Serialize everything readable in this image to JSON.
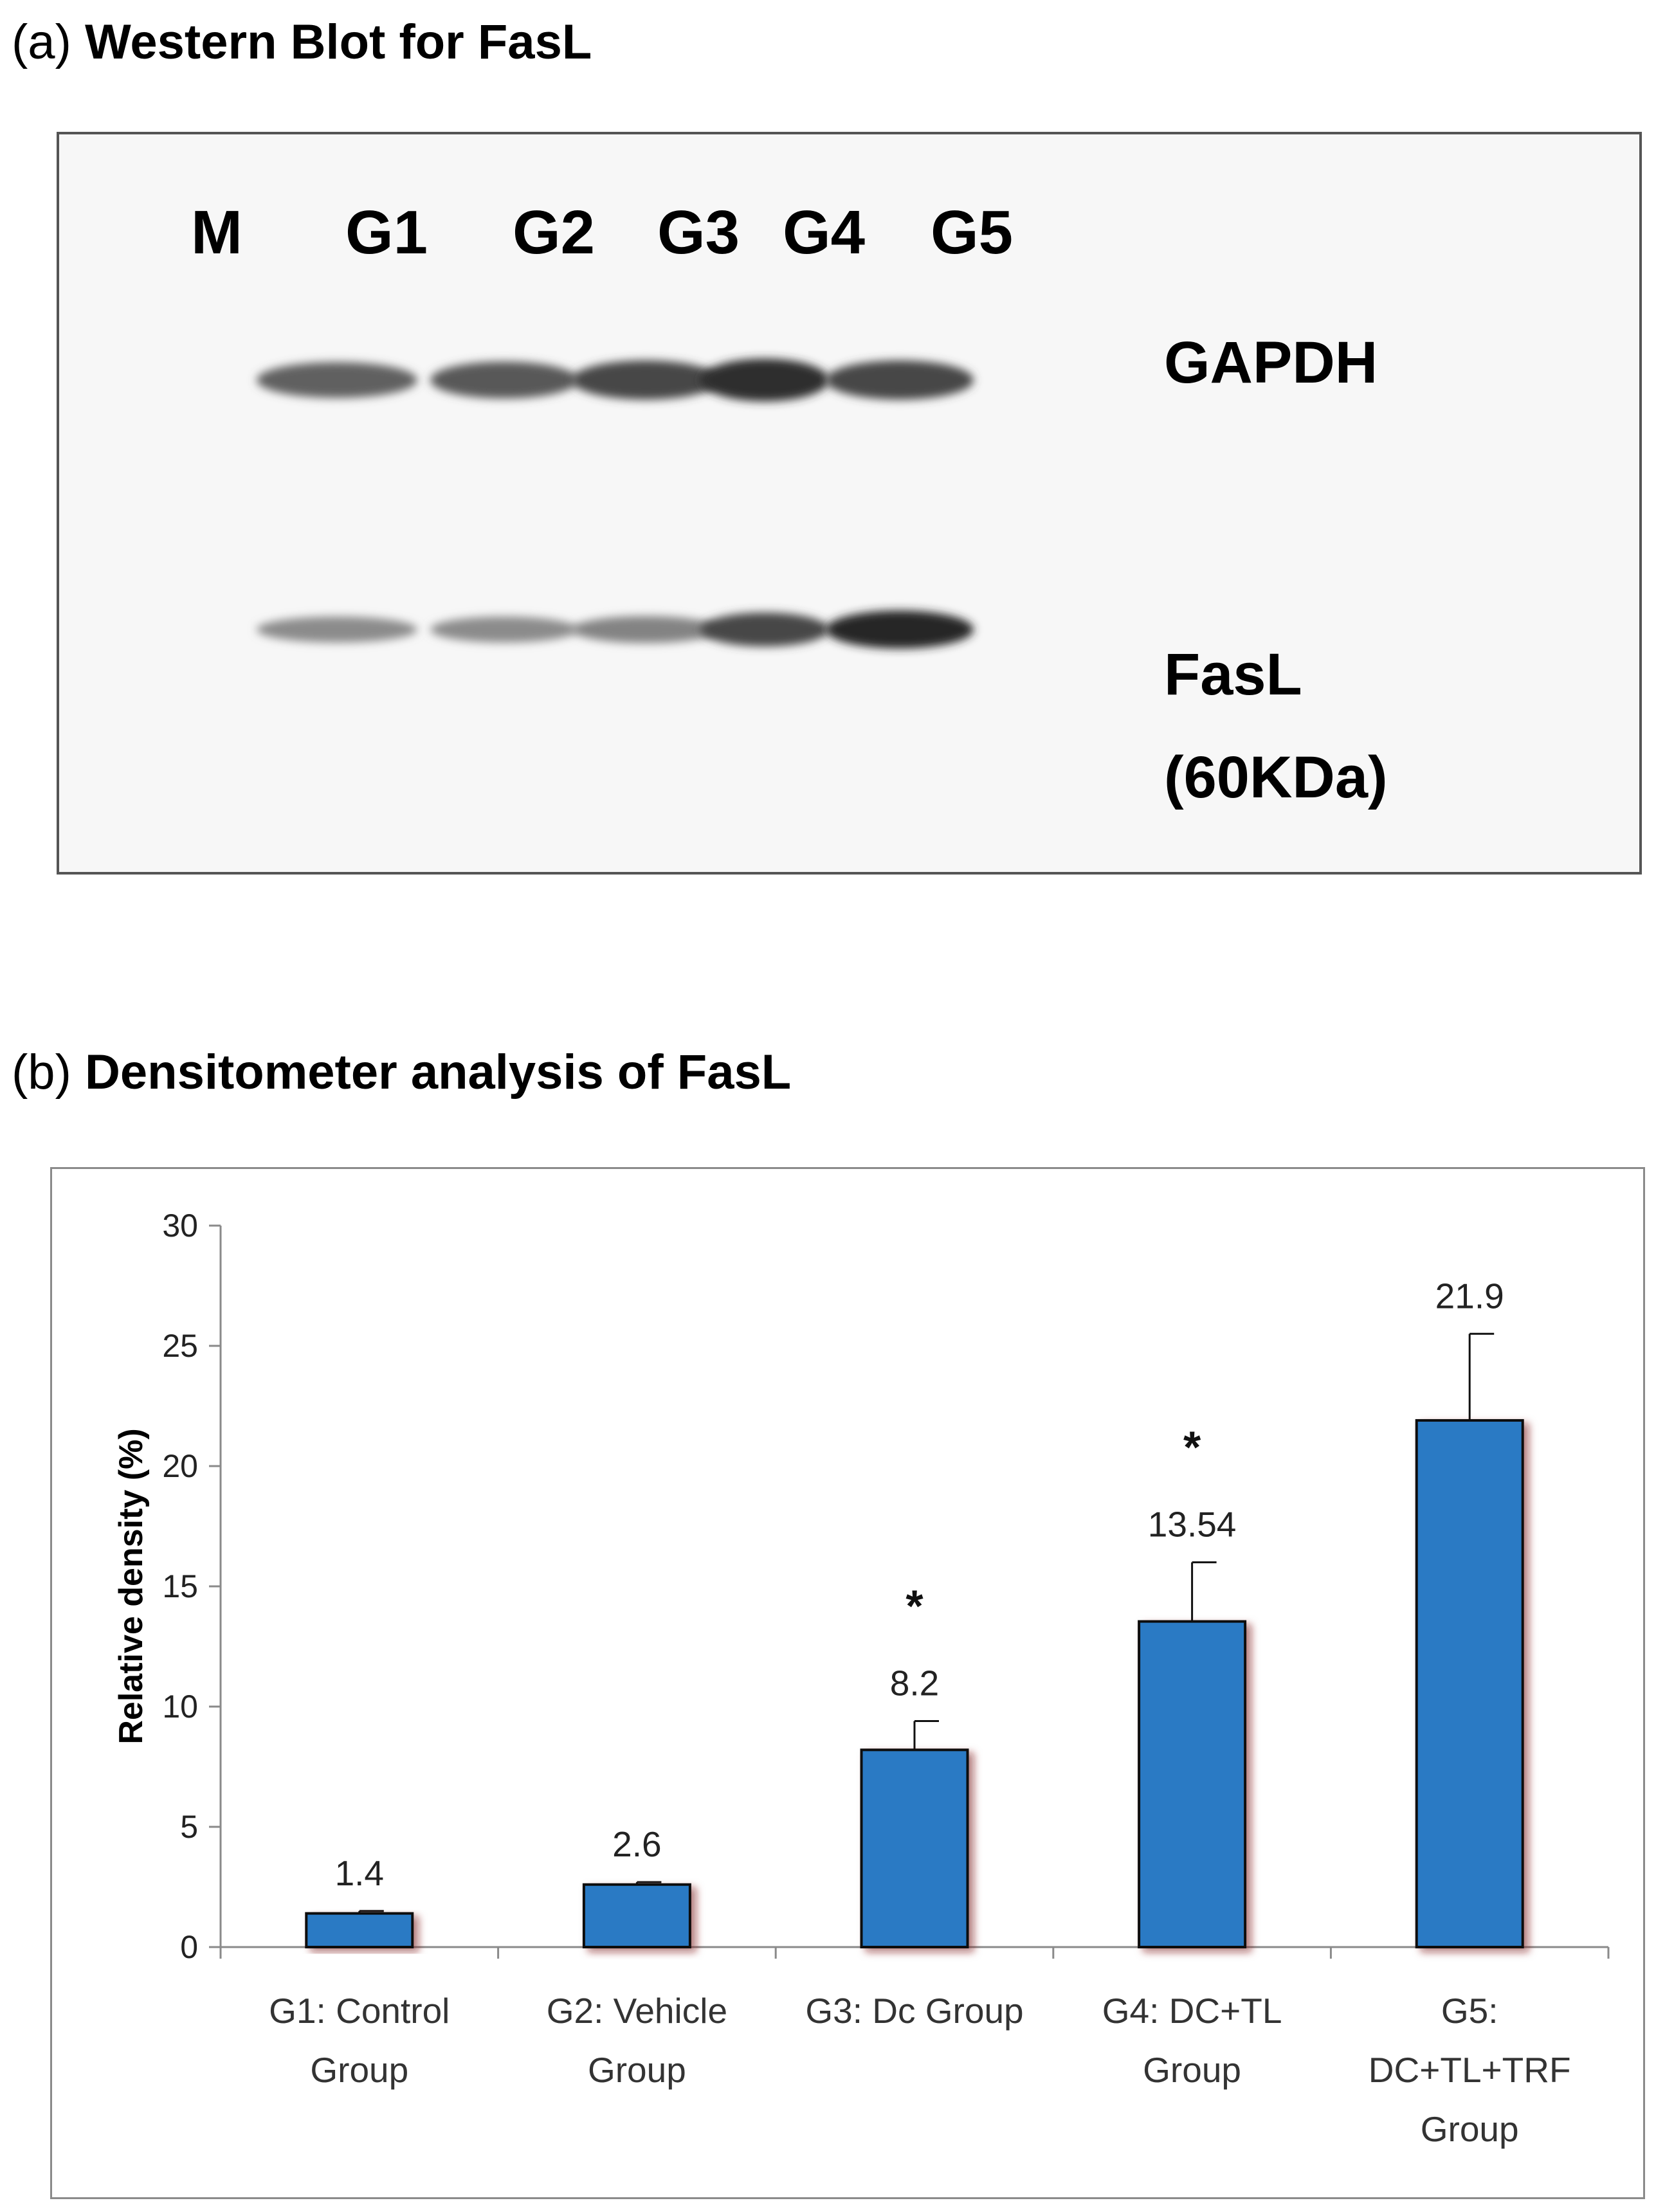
{
  "panel_a": {
    "prefix": "(a)",
    "title": "Western Blot for FasL",
    "lanes": [
      "M",
      "G1",
      "G2",
      "G3",
      "G4",
      "G5"
    ],
    "bands": {
      "gapdh": "GAPDH",
      "fasl_line1": "FasL",
      "fasl_line2": "(60KDa)"
    },
    "gapdh_intensity": [
      0,
      0.55,
      0.6,
      0.7,
      0.85,
      0.7
    ],
    "fasl_intensity": [
      0,
      0.3,
      0.3,
      0.35,
      0.7,
      0.9
    ]
  },
  "panel_b": {
    "prefix": "(b)",
    "title": "Densitometer analysis of FasL"
  },
  "colors": {
    "bar": "#2a7ac4",
    "bar_edge": "#111111",
    "axis": "#8a8a8a"
  },
  "chart_data": {
    "type": "bar",
    "categories": [
      [
        "G1: Control",
        "Group"
      ],
      [
        "G2: Vehicle",
        "Group"
      ],
      [
        "G3: Dc Group"
      ],
      [
        "G4: DC+TL",
        "Group"
      ],
      [
        "G5:",
        "DC+TL+TRF",
        "Group"
      ]
    ],
    "values": [
      1.4,
      2.6,
      8.2,
      13.54,
      21.9
    ],
    "value_labels": [
      "1.4",
      "2.6",
      "8.2",
      "13.54",
      "21.9"
    ],
    "error_upper": [
      1.5,
      2.7,
      9.4,
      16.0,
      25.5
    ],
    "significance": [
      "",
      "",
      "*",
      "*",
      ""
    ],
    "ylabel": "Relative density (%)",
    "xlabel": "",
    "ylim": [
      0,
      30
    ],
    "yticks": [
      0,
      5,
      10,
      15,
      20,
      25,
      30
    ],
    "grid": false,
    "legend": "none"
  }
}
